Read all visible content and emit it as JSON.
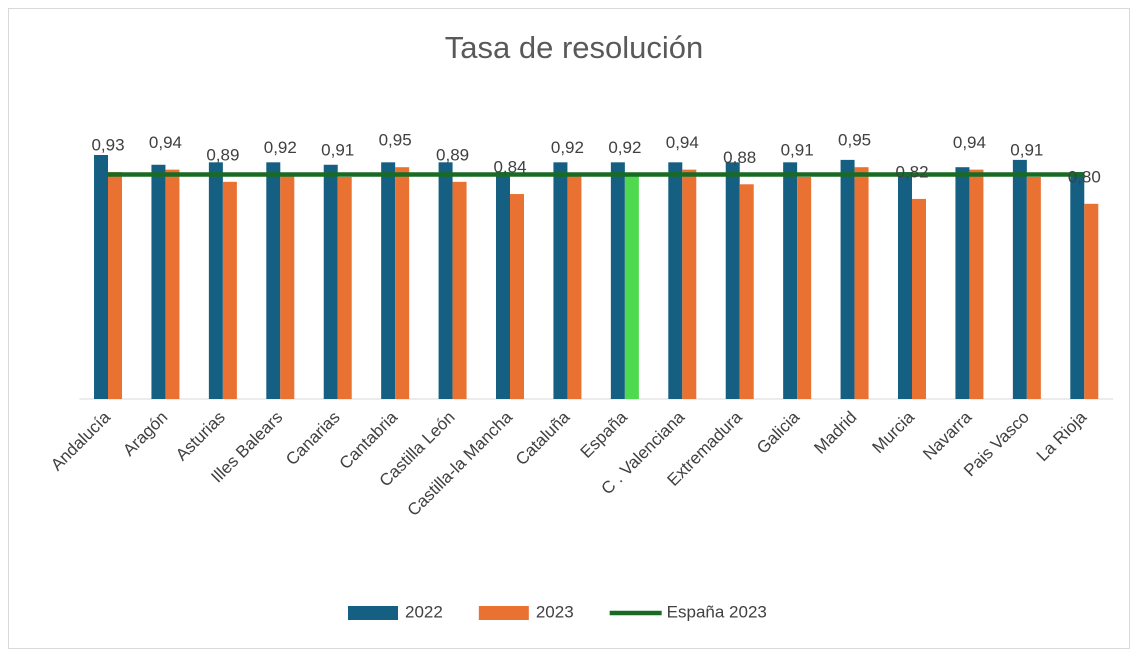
{
  "chart_data": {
    "type": "bar",
    "title": "Tasa de resolución",
    "categories": [
      "Andalucía",
      "Aragón",
      "Asturias",
      "Illes Balears",
      "Canarias",
      "Cantabria",
      "Castilla León",
      "Castilla-la Mancha",
      "Cataluña",
      "España",
      "C . Valenciana",
      "Extremadura",
      "Galicia",
      "Madrid",
      "Murcia",
      "Navarra",
      "Pais Vasco",
      "La Rioja"
    ],
    "ylim": [
      0,
      1
    ],
    "series": [
      {
        "name": "2022",
        "color": "#156082",
        "values": [
          1.0,
          0.96,
          0.97,
          0.97,
          0.96,
          0.97,
          0.97,
          0.93,
          0.97,
          0.97,
          0.97,
          0.97,
          0.97,
          0.98,
          0.93,
          0.95,
          0.98,
          0.93
        ]
      },
      {
        "name": "2023",
        "color": "#e97132",
        "colors": [
          "#e97132",
          "#e97132",
          "#e97132",
          "#e97132",
          "#e97132",
          "#e97132",
          "#e97132",
          "#e97132",
          "#e97132",
          "#4ed94e",
          "#e97132",
          "#e97132",
          "#e97132",
          "#e97132",
          "#e97132",
          "#e97132",
          "#e97132",
          "#e97132"
        ],
        "values": [
          0.93,
          0.94,
          0.89,
          0.92,
          0.91,
          0.95,
          0.89,
          0.84,
          0.92,
          0.92,
          0.94,
          0.88,
          0.91,
          0.95,
          0.82,
          0.94,
          0.91,
          0.8
        ],
        "value_labels": [
          "0,93",
          "0,94",
          "0,89",
          "0,92",
          "0,91",
          "0,95",
          "0,89",
          "0,84",
          "0,92",
          "0,92",
          "0,94",
          "0,88",
          "0,91",
          "0,95",
          "0,82",
          "0,94",
          "0,91",
          "0,80"
        ]
      },
      {
        "name": "España 2023",
        "type": "line",
        "color": "#196b24",
        "values": [
          0.92,
          0.92,
          0.92,
          0.92,
          0.92,
          0.92,
          0.92,
          0.92,
          0.92,
          0.92,
          0.92,
          0.92,
          0.92,
          0.92,
          0.92,
          0.92,
          0.92,
          0.92
        ]
      }
    ],
    "legend": "bottom"
  }
}
